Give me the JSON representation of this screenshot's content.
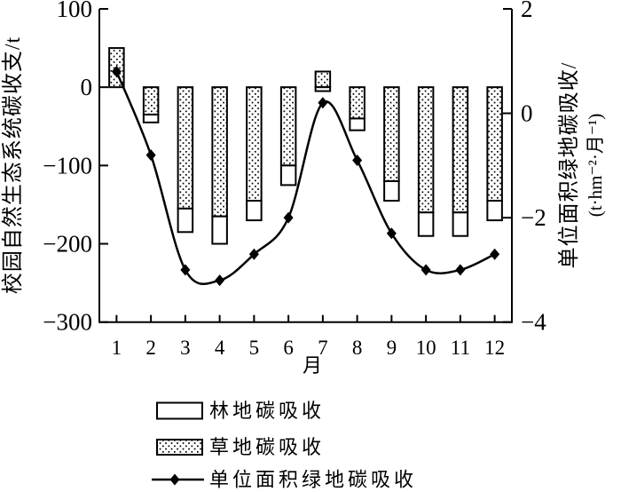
{
  "figure": {
    "left_axis": {
      "title": "校园自然生态系统碳收支/t",
      "ticks": [
        {
          "value": 100,
          "label": "100"
        },
        {
          "value": 0,
          "label": "0"
        },
        {
          "value": -100,
          "label": "−100"
        },
        {
          "value": -200,
          "label": "−200"
        },
        {
          "value": -300,
          "label": "−300"
        }
      ]
    },
    "right_axis": {
      "title_line1": "单位面积绿地碳吸收/",
      "title_line2": "(t·hm⁻²·月⁻¹)",
      "ticks": [
        {
          "value": 2,
          "label": "2"
        },
        {
          "value": 0,
          "label": "0"
        },
        {
          "value": -2,
          "label": "−2"
        },
        {
          "value": -4,
          "label": "−4"
        }
      ]
    },
    "x_axis": {
      "title": "月"
    },
    "legend": [
      {
        "label": "林地碳吸收",
        "swatch": "white-rect"
      },
      {
        "label": "草地碳吸收",
        "swatch": "dotted-rect"
      },
      {
        "label": "单位面积绿地碳吸收",
        "swatch": "line-diamond"
      }
    ]
  },
  "chart_data": {
    "type": "combo-stacked-bar-line",
    "categories": [
      "1",
      "2",
      "3",
      "4",
      "5",
      "6",
      "7",
      "8",
      "9",
      "10",
      "11",
      "12"
    ],
    "xlabel": "月",
    "left_ylabel": "校园自然生态系统碳收支/t",
    "right_ylabel": "单位面积绿地碳吸收/(t·hm⁻²·月⁻¹)",
    "left_ylim": [
      -300,
      100
    ],
    "right_ylim": [
      -4,
      2
    ],
    "grid": false,
    "legend_position": "bottom",
    "bar_series": [
      {
        "name": "草地碳吸收",
        "pattern": "dotted",
        "axis": "left",
        "values": [
          50,
          -35,
          -155,
          -165,
          -145,
          -100,
          20,
          -40,
          -120,
          -160,
          -160,
          -145
        ]
      },
      {
        "name": "林地碳吸收",
        "pattern": "white",
        "axis": "left",
        "values": [
          0,
          -10,
          -30,
          -35,
          -25,
          -25,
          -5,
          -15,
          -25,
          -30,
          -30,
          -25
        ]
      }
    ],
    "line_series": {
      "name": "单位面积绿地碳吸收",
      "axis": "right",
      "marker": "diamond",
      "values": [
        0.8,
        -0.8,
        -3.0,
        -3.2,
        -2.7,
        -2.0,
        0.2,
        -0.9,
        -2.3,
        -3.0,
        -3.0,
        -2.7
      ]
    },
    "stack_note": "bars stack outward from zero; dotted grass segment adjacent to zero, white forest segment outermost"
  },
  "colors": {
    "ink": "#000000",
    "background": "#ffffff"
  }
}
